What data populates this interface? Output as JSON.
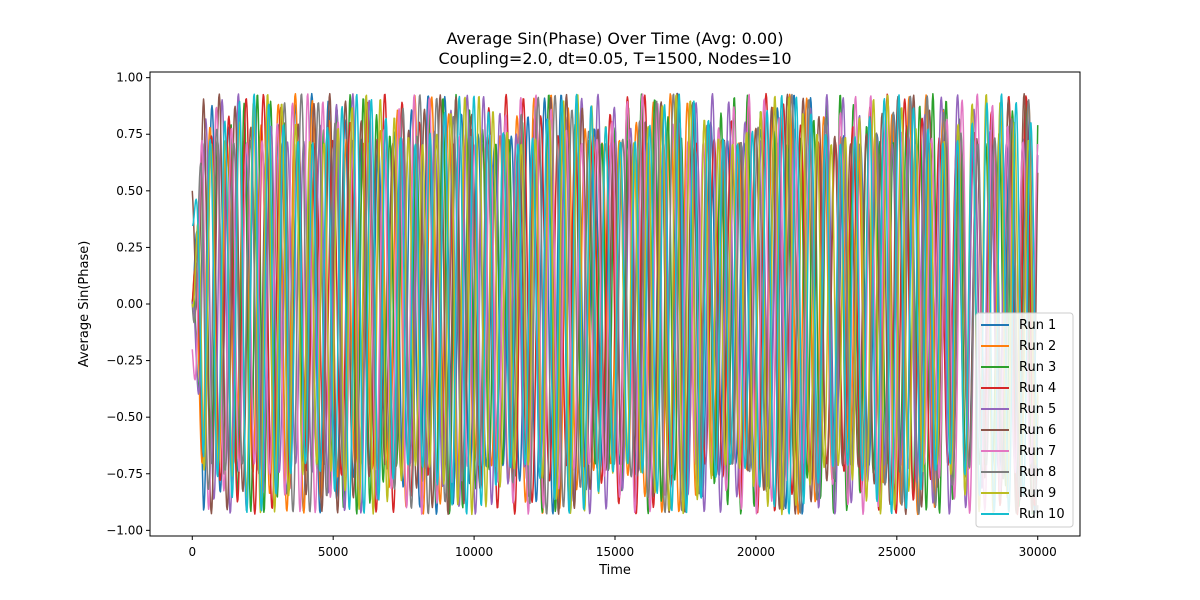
{
  "chart_data": {
    "type": "line",
    "title": "Average Sin(Phase) Over Time (Avg: 0.00)",
    "subtitle": "Coupling=2.0, dt=0.05, T=1500, Nodes=10",
    "xlabel": "Time",
    "ylabel": "Average Sin(Phase)",
    "xlim": [
      -1500,
      31500
    ],
    "ylim": [
      -1.025,
      1.025
    ],
    "xticks": [
      0,
      5000,
      10000,
      15000,
      20000,
      25000,
      30000
    ],
    "xtick_labels": [
      "0",
      "5000",
      "10000",
      "15000",
      "20000",
      "25000",
      "30000"
    ],
    "yticks": [
      -1.0,
      -0.75,
      -0.5,
      -0.25,
      0.0,
      0.25,
      0.5,
      0.75,
      1.0
    ],
    "ytick_labels": [
      "−1.00",
      "−0.75",
      "−0.50",
      "−0.25",
      "0.00",
      "0.25",
      "0.50",
      "0.75",
      "1.00"
    ],
    "grid": false,
    "legend_position": "lower-right",
    "x_range": [
      0,
      30000
    ],
    "amplitude": 0.93,
    "series": [
      {
        "name": "Run 1",
        "color": "#1f77b4",
        "period": 590,
        "phase": 0.4,
        "start": 0.0
      },
      {
        "name": "Run 2",
        "color": "#ff7f0e",
        "period": 605,
        "phase": 1.3,
        "start": 0.0
      },
      {
        "name": "Run 3",
        "color": "#2ca02c",
        "period": 470,
        "phase": 2.1,
        "start": 0.0
      },
      {
        "name": "Run 4",
        "color": "#d62728",
        "period": 615,
        "phase": 0.9,
        "start": 0.0
      },
      {
        "name": "Run 5",
        "color": "#9467bd",
        "period": 580,
        "phase": 2.7,
        "start": 0.0
      },
      {
        "name": "Run 6",
        "color": "#8c564b",
        "period": 560,
        "phase": 3.4,
        "start": 0.5
      },
      {
        "name": "Run 7",
        "color": "#e377c2",
        "period": 540,
        "phase": 4.2,
        "start": -0.2
      },
      {
        "name": "Run 8",
        "color": "#7f7f7f",
        "period": 600,
        "phase": 5.0,
        "start": 0.0
      },
      {
        "name": "Run 9",
        "color": "#bcbd22",
        "period": 500,
        "phase": 5.7,
        "start": 0.0
      },
      {
        "name": "Run 10",
        "color": "#17becf",
        "period": 520,
        "phase": 0.2,
        "start": 0.35
      }
    ]
  }
}
